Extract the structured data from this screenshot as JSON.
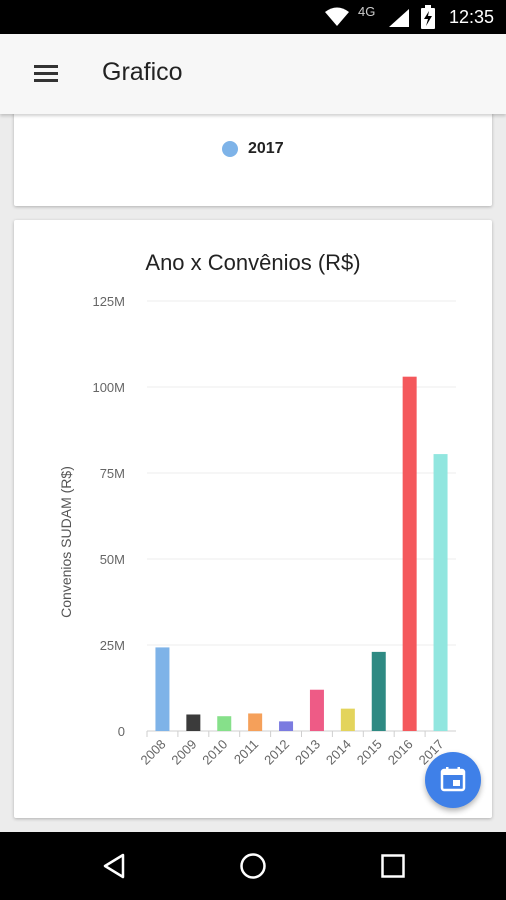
{
  "status_bar": {
    "network": "4G",
    "time": "12:35",
    "icons": [
      "wifi-icon",
      "signal-icon",
      "battery-charging-icon"
    ]
  },
  "app_bar": {
    "title": "Grafico",
    "menu_icon": "hamburger-menu-icon"
  },
  "legend_card": {
    "entries": [
      {
        "label": "2017",
        "color": "#7eb3e8"
      }
    ]
  },
  "chart_data": {
    "type": "bar",
    "title": "Ano x Convênios (R$)",
    "xlabel": "",
    "ylabel": "Convenios SUDAM (R$)",
    "categories": [
      "2008",
      "2009",
      "2010",
      "2011",
      "2012",
      "2013",
      "2014",
      "2015",
      "2016",
      "2017"
    ],
    "values": [
      24300000,
      4800000,
      4300000,
      5100000,
      2800000,
      12000000,
      6500000,
      23000000,
      103000000,
      80500000
    ],
    "colors": [
      "#7eb3e8",
      "#3b3b3b",
      "#86e08a",
      "#f5a05a",
      "#7b7be0",
      "#ee5b86",
      "#e3d45c",
      "#2e8a83",
      "#f4585c",
      "#91e6df"
    ],
    "ylim": [
      0,
      125000000
    ],
    "yticks": [
      0,
      25000000,
      50000000,
      75000000,
      100000000,
      125000000
    ],
    "ytick_labels": [
      "0",
      "25M",
      "50M",
      "75M",
      "100M",
      "125M"
    ],
    "grid": true,
    "legend": "none"
  },
  "fab": {
    "icon": "calendar-icon",
    "color": "#3f80e8"
  },
  "nav_bar": {
    "buttons": [
      "back-icon",
      "home-icon",
      "recents-icon"
    ]
  }
}
